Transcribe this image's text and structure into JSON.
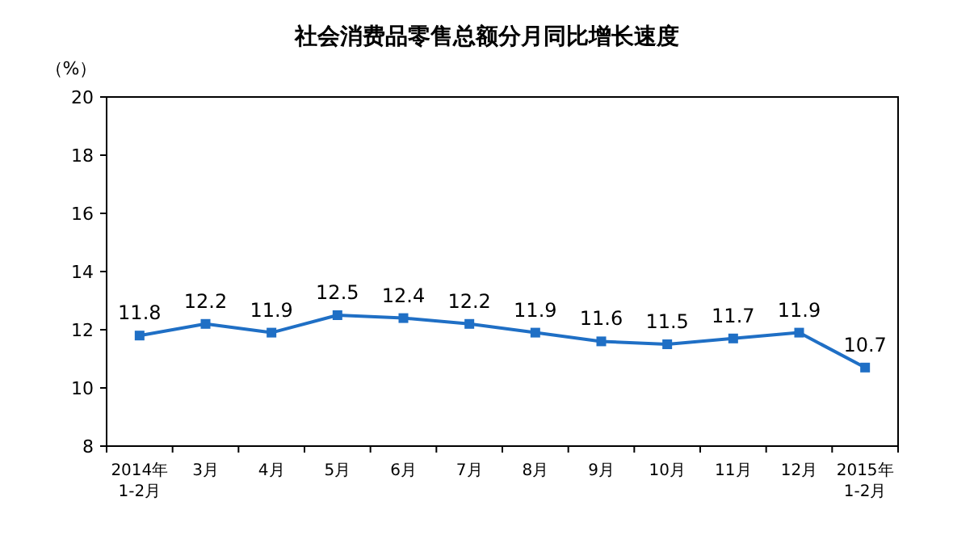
{
  "chart_data": {
    "type": "line",
    "title": "社会消费品零售总额分月同比增长速度",
    "ylabel": "（%）",
    "categories": [
      "2014年\n1-2月",
      "3月",
      "4月",
      "5月",
      "6月",
      "7月",
      "8月",
      "9月",
      "10月",
      "11月",
      "12月",
      "2015年\n1-2月"
    ],
    "series": [
      {
        "color": "#1f6fc5",
        "values": [
          11.8,
          12.2,
          11.9,
          12.5,
          12.4,
          12.2,
          11.9,
          11.6,
          11.5,
          11.7,
          11.9,
          10.7
        ]
      }
    ],
    "ylim": [
      8,
      20
    ],
    "yticks": [
      8,
      10,
      12,
      14,
      16,
      18,
      20
    ],
    "marker": "square",
    "line_style": "solid",
    "data_labels": true,
    "grid": false
  }
}
